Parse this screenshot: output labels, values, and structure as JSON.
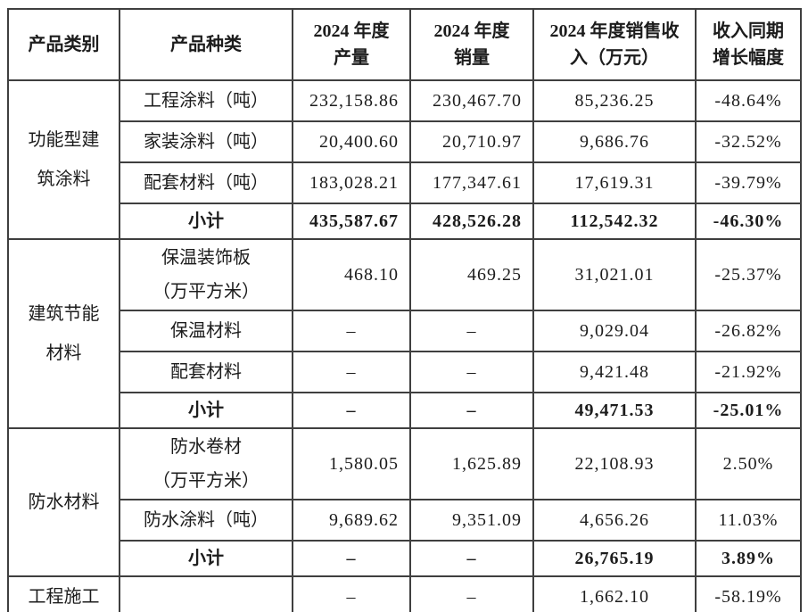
{
  "table": {
    "headers": [
      "产品类别",
      "产品种类",
      "2024 年度\n产量",
      "2024 年度\n销量",
      "2024 年度销售收\n入（万元）",
      "收入同期\n增长幅度"
    ],
    "groups": [
      {
        "category": "功能型建\n筑涂料",
        "rows": [
          {
            "type": "工程涂料（吨）",
            "production": "232,158.86",
            "sales": "230,467.70",
            "revenue": "85,236.25",
            "growth": "-48.64%",
            "subtotal": false
          },
          {
            "type": "家装涂料（吨）",
            "production": "20,400.60",
            "sales": "20,710.97",
            "revenue": "9,686.76",
            "growth": "-32.52%",
            "subtotal": false
          },
          {
            "type": "配套材料（吨）",
            "production": "183,028.21",
            "sales": "177,347.61",
            "revenue": "17,619.31",
            "growth": "-39.79%",
            "subtotal": false
          },
          {
            "type": "小计",
            "production": "435,587.67",
            "sales": "428,526.28",
            "revenue": "112,542.32",
            "growth": "-46.30%",
            "subtotal": true
          }
        ]
      },
      {
        "category": "建筑节能\n材料",
        "rows": [
          {
            "type": "保温装饰板\n（万平方米）",
            "production": "468.10",
            "sales": "469.25",
            "revenue": "31,021.01",
            "growth": "-25.37%",
            "subtotal": false
          },
          {
            "type": "保温材料",
            "production": "–",
            "sales": "–",
            "revenue": "9,029.04",
            "growth": "-26.82%",
            "subtotal": false
          },
          {
            "type": "配套材料",
            "production": "–",
            "sales": "–",
            "revenue": "9,421.48",
            "growth": "-21.92%",
            "subtotal": false
          },
          {
            "type": "小计",
            "production": "–",
            "sales": "–",
            "revenue": "49,471.53",
            "growth": "-25.01%",
            "subtotal": true
          }
        ]
      },
      {
        "category": "防水材料",
        "rows": [
          {
            "type": "防水卷材\n（万平方米）",
            "production": "1,580.05",
            "sales": "1,625.89",
            "revenue": "22,108.93",
            "growth": "2.50%",
            "subtotal": false
          },
          {
            "type": "防水涂料（吨）",
            "production": "9,689.62",
            "sales": "9,351.09",
            "revenue": "4,656.26",
            "growth": "11.03%",
            "subtotal": false
          },
          {
            "type": "小计",
            "production": "–",
            "sales": "–",
            "revenue": "26,765.19",
            "growth": "3.89%",
            "subtotal": true
          }
        ]
      },
      {
        "category": "工程施工",
        "rows": [
          {
            "type": "",
            "production": "–",
            "sales": "–",
            "revenue": "1,662.10",
            "growth": "-58.19%",
            "subtotal": false
          }
        ]
      }
    ]
  }
}
